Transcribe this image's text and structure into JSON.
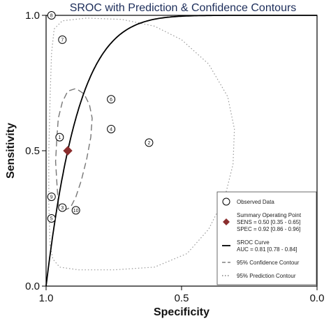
{
  "chart_data": {
    "type": "scatter",
    "title": "SROC with Prediction & Confidence Contours",
    "xlabel": "Specificity",
    "ylabel": "Sensitivity",
    "xlim": [
      1.0,
      0.0
    ],
    "ylim": [
      0.0,
      1.0
    ],
    "x_ticks": [
      "1.0",
      "0.5",
      "0.0"
    ],
    "y_ticks": [
      "0.0",
      "0.5",
      "1.0"
    ],
    "observed_data": [
      {
        "label": "1",
        "specificity": 0.95,
        "sensitivity": 0.55
      },
      {
        "label": "2",
        "specificity": 0.62,
        "sensitivity": 0.53
      },
      {
        "label": "3",
        "specificity": 0.94,
        "sensitivity": 0.29
      },
      {
        "label": "4",
        "specificity": 0.76,
        "sensitivity": 0.58
      },
      {
        "label": "5",
        "specificity": 0.98,
        "sensitivity": 0.25
      },
      {
        "label": "6",
        "specificity": 0.76,
        "sensitivity": 0.69
      },
      {
        "label": "7",
        "specificity": 0.94,
        "sensitivity": 0.91
      },
      {
        "label": "8",
        "specificity": 0.98,
        "sensitivity": 1.0
      },
      {
        "label": "9",
        "specificity": 0.98,
        "sensitivity": 0.33
      },
      {
        "label": "10",
        "specificity": 0.89,
        "sensitivity": 0.28
      }
    ],
    "summary_point": {
      "specificity": 0.92,
      "sensitivity": 0.5,
      "color": "#8b2e2e"
    },
    "sroc_curve_auc": 0.81,
    "confidence_contour": [
      [
        0.955,
        0.3
      ],
      [
        0.96,
        0.38
      ],
      [
        0.965,
        0.46
      ],
      [
        0.96,
        0.55
      ],
      [
        0.955,
        0.62
      ],
      [
        0.94,
        0.68
      ],
      [
        0.92,
        0.72
      ],
      [
        0.89,
        0.73
      ],
      [
        0.86,
        0.71
      ],
      [
        0.84,
        0.67
      ],
      [
        0.83,
        0.62
      ],
      [
        0.835,
        0.55
      ],
      [
        0.85,
        0.47
      ],
      [
        0.87,
        0.39
      ],
      [
        0.89,
        0.33
      ],
      [
        0.91,
        0.29
      ],
      [
        0.935,
        0.28
      ],
      [
        0.955,
        0.3
      ]
    ],
    "prediction_contour": [
      [
        0.985,
        0.15
      ],
      [
        0.99,
        0.3
      ],
      [
        0.99,
        0.5
      ],
      [
        0.985,
        0.7
      ],
      [
        0.98,
        0.86
      ],
      [
        0.97,
        0.95
      ],
      [
        0.94,
        0.98
      ],
      [
        0.85,
        0.99
      ],
      [
        0.72,
        0.985
      ],
      [
        0.6,
        0.96
      ],
      [
        0.5,
        0.91
      ],
      [
        0.4,
        0.82
      ],
      [
        0.33,
        0.7
      ],
      [
        0.305,
        0.58
      ],
      [
        0.31,
        0.45
      ],
      [
        0.34,
        0.33
      ],
      [
        0.4,
        0.21
      ],
      [
        0.48,
        0.12
      ],
      [
        0.6,
        0.07
      ],
      [
        0.75,
        0.06
      ],
      [
        0.88,
        0.06
      ],
      [
        0.95,
        0.07
      ],
      [
        0.975,
        0.1
      ],
      [
        0.985,
        0.15
      ]
    ],
    "legend": {
      "position": "bottom-right",
      "items": [
        {
          "symbol": "circle",
          "text": "Observed Data"
        },
        {
          "symbol": "diamond",
          "text": "Summary Operating Point",
          "lines": [
            "SENS = 0.50 [0.35 - 0.65]",
            "SPEC = 0.92 [0.86 - 0.96]"
          ]
        },
        {
          "symbol": "solid",
          "text": "SROC Curve",
          "lines": [
            "AUC = 0.81 [0.78 - 0.84]"
          ]
        },
        {
          "symbol": "dash",
          "text": "95% Confidence Contour"
        },
        {
          "symbol": "dot",
          "text": "95% Prediction Contour"
        }
      ]
    },
    "colors": {
      "title": "#1c2d5a",
      "summary": "#8b2e2e",
      "curve": "#000000",
      "contour": "#777777",
      "prediction": "#999999"
    }
  }
}
